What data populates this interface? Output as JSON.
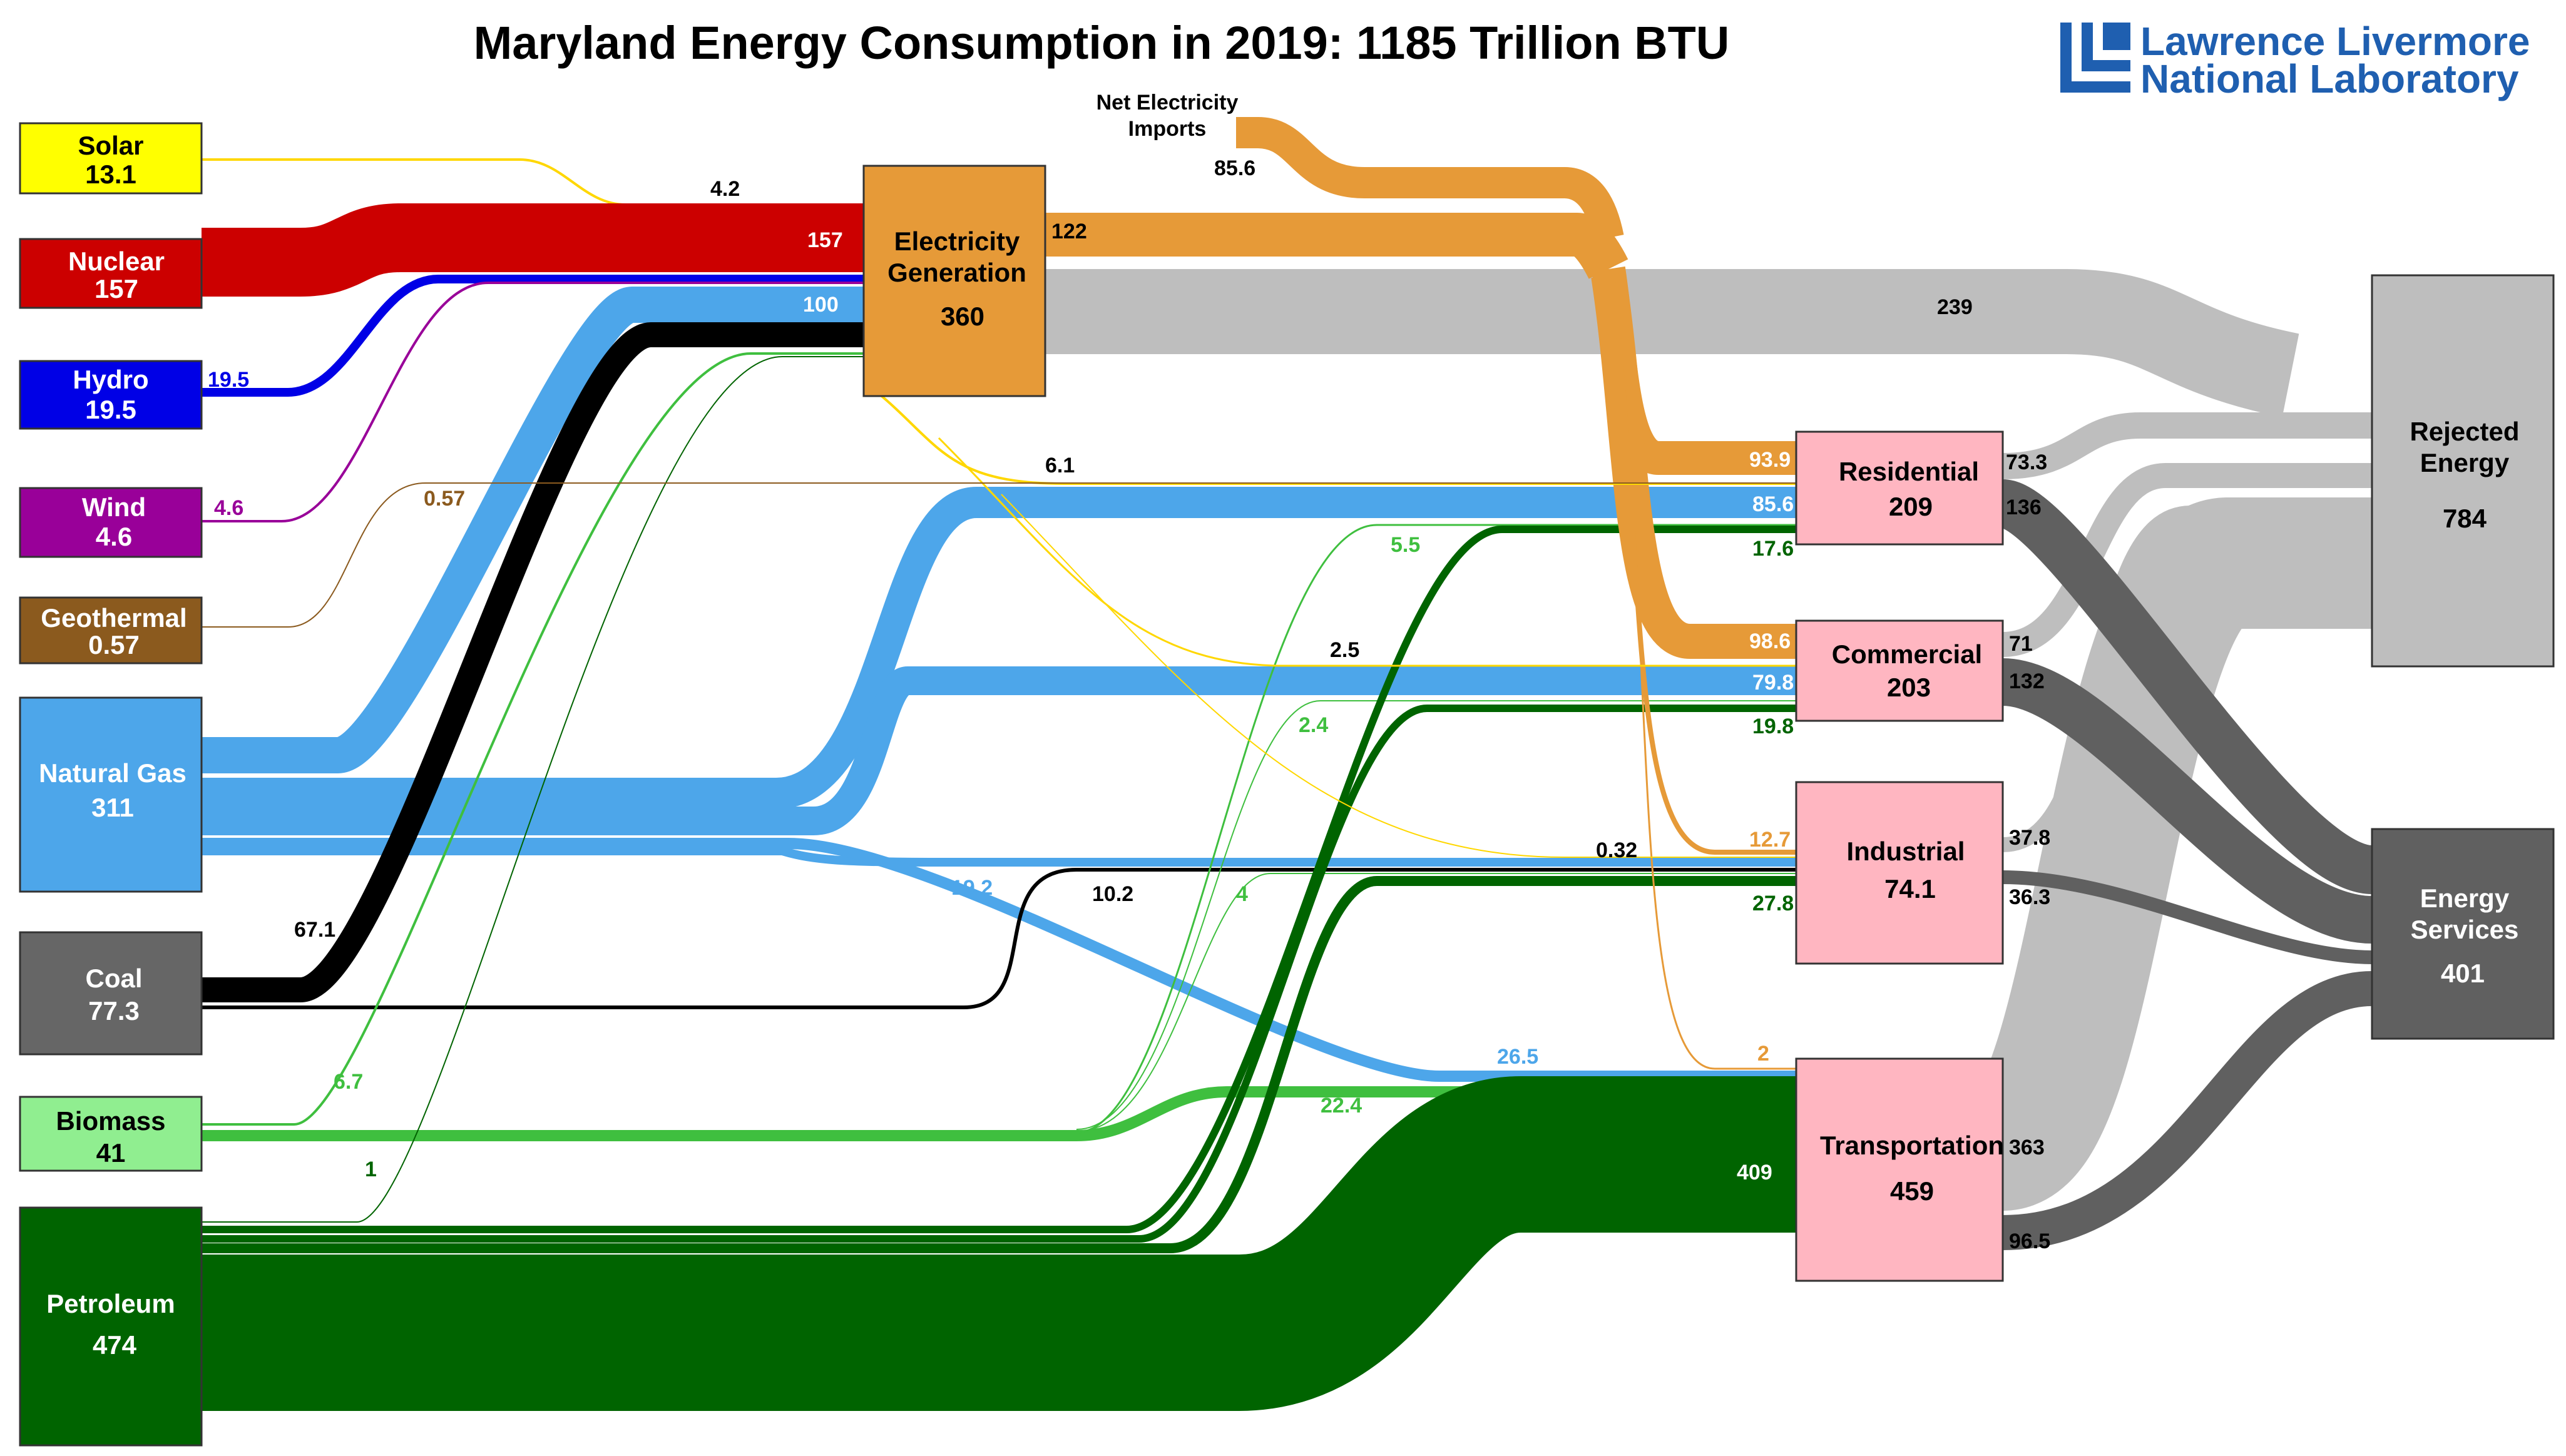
{
  "title": "Maryland Energy Consumption in 2019: 1185 Trillion BTU",
  "logo": {
    "line1": "Lawrence Livermore",
    "line2": "National Laboratory",
    "color": "#1f5fb0"
  },
  "net_imports_label": [
    "Net Electricity",
    "Imports"
  ],
  "colors": {
    "solar": "#ffd700",
    "nuclear": "#cc0000",
    "hydro": "#0000e6",
    "wind": "#990099",
    "geothermal": "#8b5a1e",
    "natural_gas": "#4da6ea",
    "coal": "#000000",
    "coal_box": "#666666",
    "biomass": "#3fbf3f",
    "biomass_box": "#90ee90",
    "petroleum": "#006400",
    "electricity": "#e69a38",
    "rejected": "#bebebe",
    "services": "#606060",
    "sector_box": "#ffb6c1"
  },
  "nodes": {
    "solar": {
      "name": "Solar",
      "value": "13.1"
    },
    "nuclear": {
      "name": "Nuclear",
      "value": "157"
    },
    "hydro": {
      "name": "Hydro",
      "value": "19.5"
    },
    "wind": {
      "name": "Wind",
      "value": "4.6"
    },
    "geothermal": {
      "name": "Geothermal",
      "value": "0.57"
    },
    "natural_gas": {
      "name": "Natural Gas",
      "value": "311"
    },
    "coal": {
      "name": "Coal",
      "value": "77.3"
    },
    "biomass": {
      "name": "Biomass",
      "value": "41"
    },
    "petroleum": {
      "name": "Petroleum",
      "value": "474"
    },
    "electricity": {
      "name": [
        "Electricity",
        "Generation"
      ],
      "value": "360"
    },
    "residential": {
      "name": "Residential",
      "value": "209"
    },
    "commercial": {
      "name": "Commercial",
      "value": "203"
    },
    "industrial": {
      "name": "Industrial",
      "value": "74.1"
    },
    "transportation": {
      "name": "Transportation",
      "value": "459"
    },
    "rejected": {
      "name": [
        "Rejected",
        "Energy"
      ],
      "value": "784"
    },
    "services": {
      "name": [
        "Energy",
        "Services"
      ],
      "value": "401"
    }
  },
  "chart_data": {
    "type": "sankey",
    "title": "Maryland Energy Consumption in 2019: 1185 Trillion BTU",
    "units": "Trillion BTU",
    "links": [
      {
        "source": "Solar",
        "target": "Electricity Generation",
        "value": "4.2"
      },
      {
        "source": "Solar",
        "target": "Residential",
        "value": "6.1"
      },
      {
        "source": "Solar",
        "target": "Commercial",
        "value": "2.5"
      },
      {
        "source": "Solar",
        "target": "Industrial",
        "value": "0.32"
      },
      {
        "source": "Nuclear",
        "target": "Electricity Generation",
        "value": "157"
      },
      {
        "source": "Hydro",
        "target": "Electricity Generation",
        "value": "19.5"
      },
      {
        "source": "Wind",
        "target": "Electricity Generation",
        "value": "4.6"
      },
      {
        "source": "Geothermal",
        "target": "Residential",
        "value": "0.57"
      },
      {
        "source": "Natural Gas",
        "target": "Electricity Generation",
        "value": "100"
      },
      {
        "source": "Natural Gas",
        "target": "Residential",
        "value": "85.6"
      },
      {
        "source": "Natural Gas",
        "target": "Commercial",
        "value": "79.8"
      },
      {
        "source": "Natural Gas",
        "target": "Industrial",
        "value": "19.2"
      },
      {
        "source": "Natural Gas",
        "target": "Transportation",
        "value": "26.5"
      },
      {
        "source": "Coal",
        "target": "Electricity Generation",
        "value": "67.1"
      },
      {
        "source": "Coal",
        "target": "Industrial",
        "value": "10.2"
      },
      {
        "source": "Biomass",
        "target": "Electricity Generation",
        "value": "6.7"
      },
      {
        "source": "Biomass",
        "target": "Residential",
        "value": "5.5"
      },
      {
        "source": "Biomass",
        "target": "Commercial",
        "value": "2.4"
      },
      {
        "source": "Biomass",
        "target": "Industrial",
        "value": "4"
      },
      {
        "source": "Biomass",
        "target": "Transportation",
        "value": "22.4"
      },
      {
        "source": "Petroleum",
        "target": "Electricity Generation",
        "value": "1"
      },
      {
        "source": "Petroleum",
        "target": "Residential",
        "value": "17.6"
      },
      {
        "source": "Petroleum",
        "target": "Commercial",
        "value": "19.8"
      },
      {
        "source": "Petroleum",
        "target": "Industrial",
        "value": "27.8"
      },
      {
        "source": "Petroleum",
        "target": "Transportation",
        "value": "409"
      },
      {
        "source": "Net Electricity Imports",
        "target": "Electricity Generation",
        "value": "85.6"
      },
      {
        "source": "Electricity Generation",
        "target": "Residential",
        "value": "93.9"
      },
      {
        "source": "Electricity Generation",
        "target": "Commercial",
        "value": "98.6"
      },
      {
        "source": "Electricity Generation",
        "target": "Industrial",
        "value": "12.7"
      },
      {
        "source": "Electricity Generation",
        "target": "Transportation",
        "value": "2"
      },
      {
        "source": "Electricity Generation",
        "target": "Rejected Energy",
        "value": "239"
      },
      {
        "source": "Electricity Generation",
        "target": "Sectors (total)",
        "value": "122"
      },
      {
        "source": "Residential",
        "target": "Rejected Energy",
        "value": "73.3"
      },
      {
        "source": "Residential",
        "target": "Energy Services",
        "value": "136"
      },
      {
        "source": "Commercial",
        "target": "Rejected Energy",
        "value": "71"
      },
      {
        "source": "Commercial",
        "target": "Energy Services",
        "value": "132"
      },
      {
        "source": "Industrial",
        "target": "Rejected Energy",
        "value": "37.8"
      },
      {
        "source": "Industrial",
        "target": "Energy Services",
        "value": "36.3"
      },
      {
        "source": "Transportation",
        "target": "Rejected Energy",
        "value": "363"
      },
      {
        "source": "Transportation",
        "target": "Energy Services",
        "value": "96.5"
      }
    ]
  }
}
